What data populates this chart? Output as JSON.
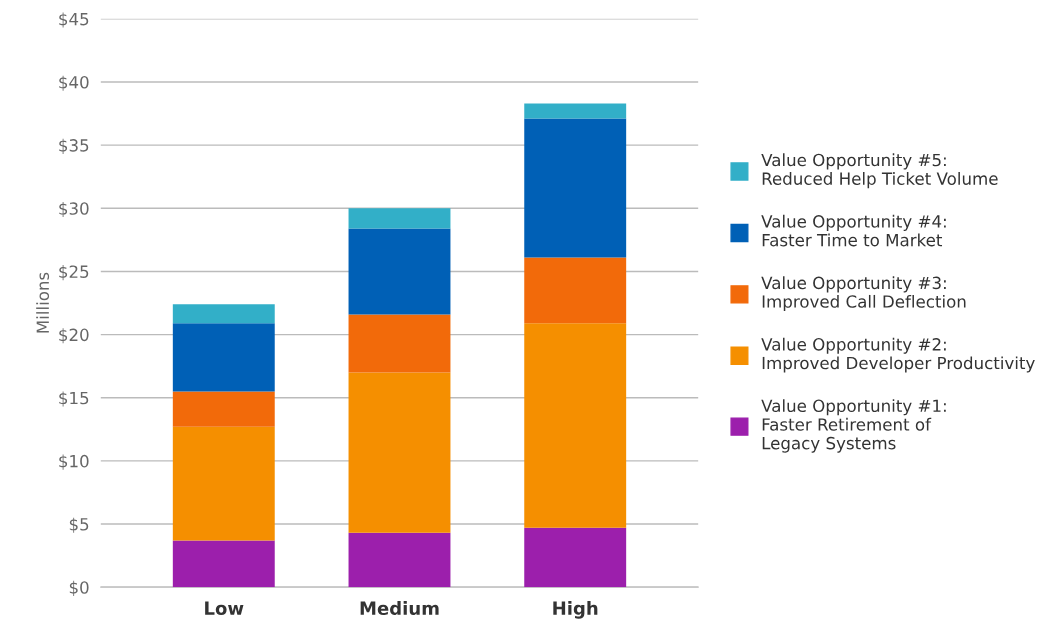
{
  "chart_data": {
    "type": "bar",
    "stacked": true,
    "ylabel": "Millions",
    "categories": [
      "Low",
      "Medium",
      "High"
    ],
    "series": [
      {
        "name": "Value Opportunity #1:\nFaster Retirement of\nLegacy Systems",
        "color": "#9c1fac",
        "values": [
          3.7,
          4.3,
          4.7
        ]
      },
      {
        "name": "Value Opportunity #2:\nImproved Developer Productivity",
        "color": "#f58f00",
        "values": [
          9.0,
          12.7,
          16.2
        ]
      },
      {
        "name": "Value Opportunity #3:\nImproved Call Deflection",
        "color": "#f26a0a",
        "values": [
          2.8,
          4.6,
          5.2
        ]
      },
      {
        "name": "Value Opportunity #4:\nFaster Time to Market",
        "color": "#0060b6",
        "values": [
          5.4,
          6.8,
          11.0
        ]
      },
      {
        "name": "Value Opportunity #5:\nReduced Help Ticket Volume",
        "color": "#32afc8",
        "values": [
          1.5,
          1.6,
          1.2
        ]
      }
    ],
    "ylim": [
      0,
      45
    ],
    "yticks": [
      {
        "value": 0,
        "label": "$0"
      },
      {
        "value": 5,
        "label": "$5"
      },
      {
        "value": 10,
        "label": "$10"
      },
      {
        "value": 15,
        "label": "$15"
      },
      {
        "value": 20,
        "label": "$20"
      },
      {
        "value": 25,
        "label": "$25"
      },
      {
        "value": 30,
        "label": "$30"
      },
      {
        "value": 35,
        "label": "$35"
      },
      {
        "value": 40,
        "label": "$40"
      },
      {
        "value": 45,
        "label": "$45"
      }
    ],
    "grid": "y",
    "legend": "right"
  }
}
